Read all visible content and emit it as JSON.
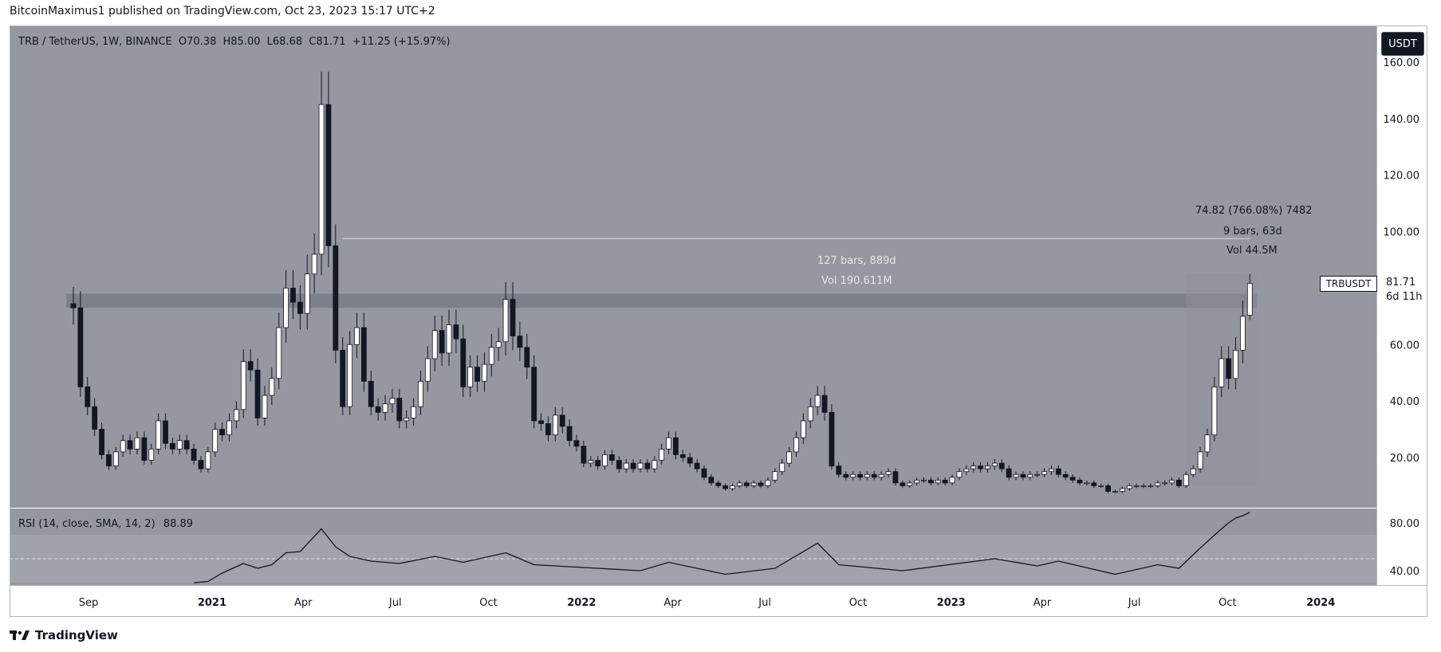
{
  "header": {
    "published_text": "BitcoinMaximus1 published on TradingView.com, Oct 23, 2023 15:17 UTC+2"
  },
  "brand": {
    "name": "TradingView"
  },
  "currency_button": {
    "label": "USDT"
  },
  "legend": {
    "symbol": "TRB / TetherUS, 1W, BINANCE",
    "o_label": "O",
    "o_value": "70.38",
    "h_label": "H",
    "h_value": "85.00",
    "l_label": "L",
    "l_value": "68.68",
    "c_label": "C",
    "c_value": "81.71",
    "change": "+11.25 (+15.97%)"
  },
  "price_tag": {
    "symbol": "TRBUSDT",
    "price": "81.71",
    "countdown": "6d 11h"
  },
  "measure_left": {
    "bars": "127 bars, 889d",
    "vol": "Vol 190.611M"
  },
  "measure_right": {
    "change": "74.82 (766.08%) 7482",
    "bars": "9 bars, 63d",
    "vol": "Vol 44.5M"
  },
  "rsi_legend": {
    "label": "RSI (14, close, SMA, 14, 2)",
    "value": "88.89"
  },
  "colors": {
    "background": "#9598a1",
    "up_fill": "#ffffff",
    "down_fill": "#131722",
    "wick": "#131722",
    "zone": "#787b86",
    "rsi_line": "#131722"
  },
  "chart_data": {
    "type": "candlestick",
    "title": "TRB / TetherUS, 1W, BINANCE",
    "y_ticks": [
      20,
      40,
      60,
      80,
      100,
      120,
      140,
      160
    ],
    "ylim": [
      0,
      165
    ],
    "x_ticks": [
      {
        "label": "Sep",
        "date": "2020-09-01"
      },
      {
        "label": "2021",
        "date": "2021-01-01"
      },
      {
        "label": "Apr",
        "date": "2021-04-01"
      },
      {
        "label": "Jul",
        "date": "2021-07-01"
      },
      {
        "label": "Oct",
        "date": "2021-10-01"
      },
      {
        "label": "2022",
        "date": "2022-01-01"
      },
      {
        "label": "Apr",
        "date": "2022-04-01"
      },
      {
        "label": "Jul",
        "date": "2022-07-01"
      },
      {
        "label": "Oct",
        "date": "2022-10-01"
      },
      {
        "label": "2023",
        "date": "2023-01-01"
      },
      {
        "label": "Apr",
        "date": "2023-04-01"
      },
      {
        "label": "Jul",
        "date": "2023-07-01"
      },
      {
        "label": "Oct",
        "date": "2023-10-01"
      },
      {
        "label": "2024",
        "date": "2024-01-01"
      }
    ],
    "xlim": [
      "2020-06-15",
      "2024-02-25"
    ],
    "resistance_zone": [
      73,
      78
    ],
    "close_series": [
      {
        "date": "2020-08-17",
        "close": 73
      },
      {
        "date": "2020-08-24",
        "close": 45
      },
      {
        "date": "2020-08-31",
        "close": 38
      },
      {
        "date": "2020-09-07",
        "close": 30
      },
      {
        "date": "2020-09-14",
        "close": 21
      },
      {
        "date": "2020-09-21",
        "close": 17
      },
      {
        "date": "2020-09-28",
        "close": 22
      },
      {
        "date": "2020-10-05",
        "close": 26
      },
      {
        "date": "2020-10-12",
        "close": 23
      },
      {
        "date": "2020-10-19",
        "close": 27
      },
      {
        "date": "2020-10-26",
        "close": 19
      },
      {
        "date": "2020-11-02",
        "close": 23
      },
      {
        "date": "2020-11-09",
        "close": 33
      },
      {
        "date": "2020-11-16",
        "close": 25
      },
      {
        "date": "2020-11-23",
        "close": 23
      },
      {
        "date": "2020-11-30",
        "close": 26
      },
      {
        "date": "2020-12-07",
        "close": 23
      },
      {
        "date": "2020-12-14",
        "close": 19
      },
      {
        "date": "2020-12-21",
        "close": 16
      },
      {
        "date": "2020-12-28",
        "close": 22
      },
      {
        "date": "2021-01-04",
        "close": 30
      },
      {
        "date": "2021-01-11",
        "close": 28
      },
      {
        "date": "2021-01-18",
        "close": 33
      },
      {
        "date": "2021-01-25",
        "close": 37
      },
      {
        "date": "2021-02-01",
        "close": 54
      },
      {
        "date": "2021-02-08",
        "close": 51
      },
      {
        "date": "2021-02-15",
        "close": 34
      },
      {
        "date": "2021-02-22",
        "close": 42
      },
      {
        "date": "2021-03-01",
        "close": 48
      },
      {
        "date": "2021-03-08",
        "close": 66
      },
      {
        "date": "2021-03-15",
        "close": 80
      },
      {
        "date": "2021-03-22",
        "close": 75
      },
      {
        "date": "2021-03-29",
        "close": 71
      },
      {
        "date": "2021-04-05",
        "close": 85
      },
      {
        "date": "2021-04-12",
        "close": 92
      },
      {
        "date": "2021-04-19",
        "close": 145
      },
      {
        "date": "2021-04-26",
        "close": 95
      },
      {
        "date": "2021-05-03",
        "close": 58
      },
      {
        "date": "2021-05-10",
        "close": 38
      },
      {
        "date": "2021-05-17",
        "close": 60
      },
      {
        "date": "2021-05-24",
        "close": 66
      },
      {
        "date": "2021-05-31",
        "close": 47
      },
      {
        "date": "2021-06-07",
        "close": 38
      },
      {
        "date": "2021-06-14",
        "close": 36
      },
      {
        "date": "2021-06-21",
        "close": 39
      },
      {
        "date": "2021-06-28",
        "close": 41
      },
      {
        "date": "2021-07-05",
        "close": 33
      },
      {
        "date": "2021-07-12",
        "close": 34
      },
      {
        "date": "2021-07-19",
        "close": 38
      },
      {
        "date": "2021-07-26",
        "close": 47
      },
      {
        "date": "2021-08-02",
        "close": 55
      },
      {
        "date": "2021-08-09",
        "close": 65
      },
      {
        "date": "2021-08-16",
        "close": 57
      },
      {
        "date": "2021-08-23",
        "close": 67
      },
      {
        "date": "2021-08-30",
        "close": 62
      },
      {
        "date": "2021-09-06",
        "close": 45
      },
      {
        "date": "2021-09-13",
        "close": 52
      },
      {
        "date": "2021-09-20",
        "close": 47
      },
      {
        "date": "2021-09-27",
        "close": 53
      },
      {
        "date": "2021-10-04",
        "close": 59
      },
      {
        "date": "2021-10-11",
        "close": 61
      },
      {
        "date": "2021-10-18",
        "close": 76
      },
      {
        "date": "2021-10-25",
        "close": 63
      },
      {
        "date": "2021-11-01",
        "close": 59
      },
      {
        "date": "2021-11-08",
        "close": 52
      },
      {
        "date": "2021-11-15",
        "close": 33
      },
      {
        "date": "2021-11-22",
        "close": 32
      },
      {
        "date": "2021-11-29",
        "close": 28
      },
      {
        "date": "2021-12-06",
        "close": 35
      },
      {
        "date": "2021-12-13",
        "close": 31
      },
      {
        "date": "2021-12-20",
        "close": 26
      },
      {
        "date": "2021-12-27",
        "close": 24
      },
      {
        "date": "2022-01-03",
        "close": 18
      },
      {
        "date": "2022-01-10",
        "close": 19
      },
      {
        "date": "2022-01-17",
        "close": 17
      },
      {
        "date": "2022-01-24",
        "close": 21
      },
      {
        "date": "2022-01-31",
        "close": 19
      },
      {
        "date": "2022-02-07",
        "close": 16
      },
      {
        "date": "2022-02-14",
        "close": 18
      },
      {
        "date": "2022-02-21",
        "close": 16
      },
      {
        "date": "2022-02-28",
        "close": 18
      },
      {
        "date": "2022-03-07",
        "close": 16
      },
      {
        "date": "2022-03-14",
        "close": 19
      },
      {
        "date": "2022-03-21",
        "close": 23
      },
      {
        "date": "2022-03-28",
        "close": 27
      },
      {
        "date": "2022-04-04",
        "close": 21
      },
      {
        "date": "2022-04-11",
        "close": 20
      },
      {
        "date": "2022-04-18",
        "close": 18
      },
      {
        "date": "2022-04-25",
        "close": 16
      },
      {
        "date": "2022-05-02",
        "close": 13
      },
      {
        "date": "2022-05-09",
        "close": 11
      },
      {
        "date": "2022-05-16",
        "close": 10
      },
      {
        "date": "2022-05-23",
        "close": 9
      },
      {
        "date": "2022-05-30",
        "close": 10
      },
      {
        "date": "2022-06-06",
        "close": 11
      },
      {
        "date": "2022-06-13",
        "close": 10
      },
      {
        "date": "2022-06-20",
        "close": 11
      },
      {
        "date": "2022-06-27",
        "close": 10
      },
      {
        "date": "2022-07-04",
        "close": 12
      },
      {
        "date": "2022-07-11",
        "close": 15
      },
      {
        "date": "2022-07-18",
        "close": 18
      },
      {
        "date": "2022-07-25",
        "close": 22
      },
      {
        "date": "2022-08-01",
        "close": 27
      },
      {
        "date": "2022-08-08",
        "close": 33
      },
      {
        "date": "2022-08-15",
        "close": 38
      },
      {
        "date": "2022-08-22",
        "close": 42
      },
      {
        "date": "2022-08-29",
        "close": 36
      },
      {
        "date": "2022-09-05",
        "close": 17
      },
      {
        "date": "2022-09-12",
        "close": 14
      },
      {
        "date": "2022-09-19",
        "close": 13
      },
      {
        "date": "2022-09-26",
        "close": 14
      },
      {
        "date": "2022-10-03",
        "close": 13
      },
      {
        "date": "2022-10-10",
        "close": 14
      },
      {
        "date": "2022-10-17",
        "close": 13
      },
      {
        "date": "2022-10-24",
        "close": 14
      },
      {
        "date": "2022-10-31",
        "close": 15
      },
      {
        "date": "2022-11-07",
        "close": 11
      },
      {
        "date": "2022-11-14",
        "close": 10
      },
      {
        "date": "2022-11-21",
        "close": 11
      },
      {
        "date": "2022-11-28",
        "close": 12
      },
      {
        "date": "2022-12-05",
        "close": 12
      },
      {
        "date": "2022-12-12",
        "close": 11
      },
      {
        "date": "2022-12-19",
        "close": 12
      },
      {
        "date": "2022-12-26",
        "close": 11
      },
      {
        "date": "2023-01-02",
        "close": 13
      },
      {
        "date": "2023-01-09",
        "close": 15
      },
      {
        "date": "2023-01-16",
        "close": 16
      },
      {
        "date": "2023-01-23",
        "close": 17
      },
      {
        "date": "2023-01-30",
        "close": 16
      },
      {
        "date": "2023-02-06",
        "close": 17
      },
      {
        "date": "2023-02-13",
        "close": 18
      },
      {
        "date": "2023-02-20",
        "close": 16
      },
      {
        "date": "2023-02-27",
        "close": 13
      },
      {
        "date": "2023-03-06",
        "close": 14
      },
      {
        "date": "2023-03-13",
        "close": 13
      },
      {
        "date": "2023-03-20",
        "close": 14
      },
      {
        "date": "2023-03-27",
        "close": 14
      },
      {
        "date": "2023-04-03",
        "close": 15
      },
      {
        "date": "2023-04-10",
        "close": 16
      },
      {
        "date": "2023-04-17",
        "close": 14
      },
      {
        "date": "2023-04-24",
        "close": 13
      },
      {
        "date": "2023-05-01",
        "close": 12
      },
      {
        "date": "2023-05-08",
        "close": 11
      },
      {
        "date": "2023-05-15",
        "close": 11
      },
      {
        "date": "2023-05-22",
        "close": 10
      },
      {
        "date": "2023-05-29",
        "close": 10
      },
      {
        "date": "2023-06-05",
        "close": 8
      },
      {
        "date": "2023-06-12",
        "close": 8
      },
      {
        "date": "2023-06-19",
        "close": 9
      },
      {
        "date": "2023-06-26",
        "close": 10
      },
      {
        "date": "2023-07-03",
        "close": 10
      },
      {
        "date": "2023-07-10",
        "close": 10
      },
      {
        "date": "2023-07-17",
        "close": 10
      },
      {
        "date": "2023-07-24",
        "close": 11
      },
      {
        "date": "2023-07-31",
        "close": 11
      },
      {
        "date": "2023-08-07",
        "close": 12
      },
      {
        "date": "2023-08-14",
        "close": 10
      },
      {
        "date": "2023-08-21",
        "close": 14
      },
      {
        "date": "2023-08-28",
        "close": 16
      },
      {
        "date": "2023-09-04",
        "close": 22
      },
      {
        "date": "2023-09-11",
        "close": 28
      },
      {
        "date": "2023-09-18",
        "close": 45
      },
      {
        "date": "2023-09-25",
        "close": 55
      },
      {
        "date": "2023-10-02",
        "close": 48
      },
      {
        "date": "2023-10-09",
        "close": 58
      },
      {
        "date": "2023-10-16",
        "close": 70
      },
      {
        "date": "2023-10-23",
        "close": 81.71
      }
    ],
    "last_candle": {
      "date": "2023-10-23",
      "open": 70.38,
      "high": 85.0,
      "low": 68.68,
      "close": 81.71
    },
    "rsi": {
      "y_ticks": [
        40,
        80
      ],
      "ylim": [
        28,
        92
      ],
      "band": [
        30,
        70
      ],
      "midline": 50,
      "points": [
        {
          "date": "2020-12-14",
          "v": 30
        },
        {
          "date": "2020-12-28",
          "v": 31
        },
        {
          "date": "2021-01-11",
          "v": 38
        },
        {
          "date": "2021-02-01",
          "v": 46
        },
        {
          "date": "2021-02-15",
          "v": 42
        },
        {
          "date": "2021-03-01",
          "v": 45
        },
        {
          "date": "2021-03-15",
          "v": 55
        },
        {
          "date": "2021-03-29",
          "v": 56
        },
        {
          "date": "2021-04-19",
          "v": 75
        },
        {
          "date": "2021-05-03",
          "v": 60
        },
        {
          "date": "2021-05-17",
          "v": 52
        },
        {
          "date": "2021-06-07",
          "v": 48
        },
        {
          "date": "2021-07-05",
          "v": 46
        },
        {
          "date": "2021-08-09",
          "v": 52
        },
        {
          "date": "2021-09-06",
          "v": 47
        },
        {
          "date": "2021-10-18",
          "v": 55
        },
        {
          "date": "2021-11-15",
          "v": 45
        },
        {
          "date": "2021-12-27",
          "v": 43
        },
        {
          "date": "2022-02-28",
          "v": 40
        },
        {
          "date": "2022-03-28",
          "v": 47
        },
        {
          "date": "2022-05-23",
          "v": 37
        },
        {
          "date": "2022-07-11",
          "v": 42
        },
        {
          "date": "2022-08-22",
          "v": 63
        },
        {
          "date": "2022-09-12",
          "v": 45
        },
        {
          "date": "2022-11-14",
          "v": 40
        },
        {
          "date": "2023-02-13",
          "v": 50
        },
        {
          "date": "2023-03-27",
          "v": 44
        },
        {
          "date": "2023-04-17",
          "v": 48
        },
        {
          "date": "2023-06-12",
          "v": 37
        },
        {
          "date": "2023-07-24",
          "v": 45
        },
        {
          "date": "2023-08-14",
          "v": 42
        },
        {
          "date": "2023-09-04",
          "v": 59
        },
        {
          "date": "2023-09-25",
          "v": 75
        },
        {
          "date": "2023-10-02",
          "v": 80
        },
        {
          "date": "2023-10-09",
          "v": 84
        },
        {
          "date": "2023-10-16",
          "v": 86
        },
        {
          "date": "2023-10-23",
          "v": 88.89
        }
      ]
    }
  }
}
